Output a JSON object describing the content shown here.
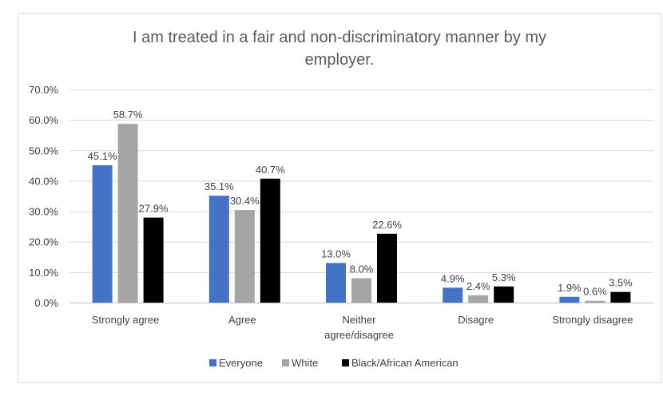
{
  "chart_data": {
    "type": "bar",
    "title": "I am treated in a fair and non-discriminatory manner by my employer.",
    "title_lines": [
      "I am treated in a fair and non-discriminatory manner by my",
      "employer."
    ],
    "categories": [
      "Strongly agree",
      "Agree",
      "Neither agree/disagree",
      "Disagree",
      "Strongly disagree"
    ],
    "category_lines": [
      [
        "Strongly agree"
      ],
      [
        "Agree"
      ],
      [
        "Neither",
        "agree/disagree"
      ],
      [
        "Disagre"
      ],
      [
        "Strongly disagree"
      ]
    ],
    "series": [
      {
        "name": "Everyone",
        "color": "#4472C4",
        "values": [
          45.1,
          35.1,
          13.0,
          4.9,
          1.9
        ]
      },
      {
        "name": "White",
        "color": "#A5A5A5",
        "values": [
          58.7,
          30.4,
          8.0,
          2.4,
          0.6
        ]
      },
      {
        "name": "Black/African American",
        "color": "#000000",
        "values": [
          27.9,
          40.7,
          22.6,
          5.3,
          3.5
        ]
      }
    ],
    "ylim": [
      0,
      70
    ],
    "yticks": [
      "0.0%",
      "10.0%",
      "20.0%",
      "30.0%",
      "40.0%",
      "50.0%",
      "60.0%",
      "70.0%"
    ],
    "xlabel": "",
    "ylabel": "",
    "grid": true,
    "legend": "bottom",
    "data_labels": true
  }
}
